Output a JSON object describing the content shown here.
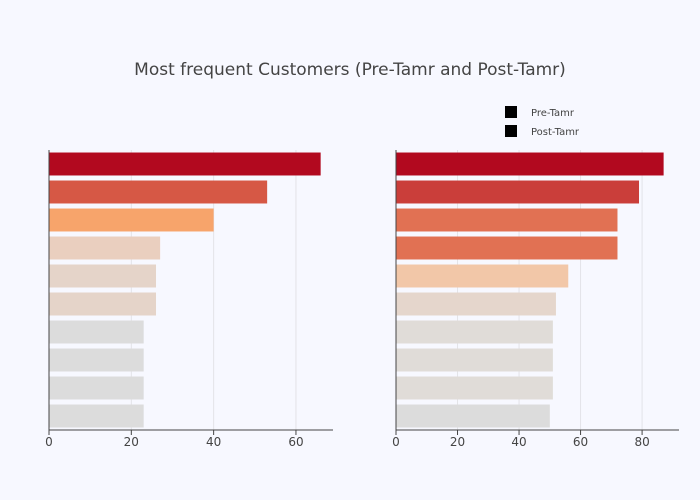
{
  "chart_data": {
    "type": "bar",
    "orientation": "horizontal",
    "title": "Most frequent Customers (Pre-Tamr and Post-Tamr)",
    "legend": {
      "placement": "top-right",
      "entries": [
        {
          "label": "Pre-Tamr",
          "color": "#000000"
        },
        {
          "label": "Post-Tamr",
          "color": "#000000"
        }
      ]
    },
    "grid": true,
    "y_tick_labels": "hidden",
    "subplots": [
      {
        "name": "Pre-Tamr",
        "xlim": [
          0,
          69
        ],
        "xticks": [
          0,
          20,
          40,
          60
        ],
        "values": [
          66,
          53,
          40,
          27,
          26,
          26,
          23,
          23,
          23,
          23
        ],
        "colors": [
          "#b2091f",
          "#d65845",
          "#f7a46b",
          "#eacfbf",
          "#e5d4c9",
          "#e5d4c9",
          "#dcdcdc",
          "#dcdcdc",
          "#dcdcdc",
          "#dcdcdc"
        ]
      },
      {
        "name": "Post-Tamr",
        "xlim": [
          0,
          92
        ],
        "xticks": [
          0,
          20,
          40,
          60,
          80
        ],
        "values": [
          87,
          79,
          72,
          72,
          56,
          52,
          51,
          51,
          51,
          50
        ],
        "colors": [
          "#b2091f",
          "#ca3e3a",
          "#e17153",
          "#e17153",
          "#f2c7a8",
          "#e5d6cc",
          "#e0dcd8",
          "#e0dcd8",
          "#e0dcd8",
          "#dcdcdc"
        ]
      }
    ]
  }
}
